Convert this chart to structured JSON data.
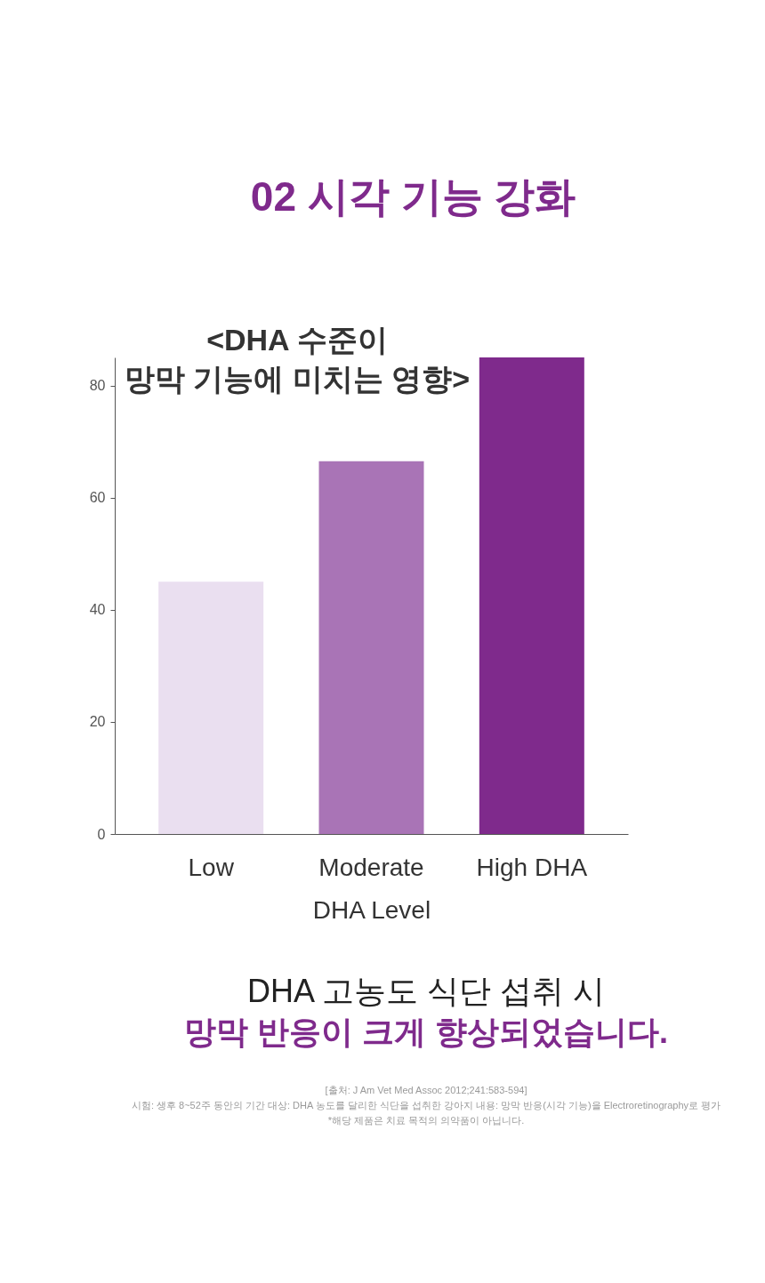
{
  "chart_data": {
    "type": "bar",
    "title": "02 시각 기능 강화",
    "subtitle": "<DHA 수준이\n망막 기능에 미치는 영향>",
    "xlabel": "DHA Level",
    "categories": [
      "Low",
      "Moderate",
      "High DHA"
    ],
    "values": [
      45,
      66.5,
      85
    ],
    "colors": [
      "#eadff0",
      "#a974b6",
      "#7f2a8c"
    ],
    "ylim": [
      0,
      85
    ],
    "yticks": [
      0,
      20,
      40,
      60,
      80
    ],
    "grid": false,
    "annotations": [
      "DHA 고농도 식단 섭취 시",
      "망막 반응이 크게 향상되었습니다.",
      "[출처: J Am Vet Med Assoc 2012;241:583-594]",
      "시험: 생후 8~52주 동안의 기간 대상: DHA 농도를 달리한 식단을 섭취한 강아지 내용: 망막 반응(시각 기능)을 Electroretinography로 평가",
      "*해당 제품은 치료 목적의 의약품이 아닙니다."
    ]
  }
}
